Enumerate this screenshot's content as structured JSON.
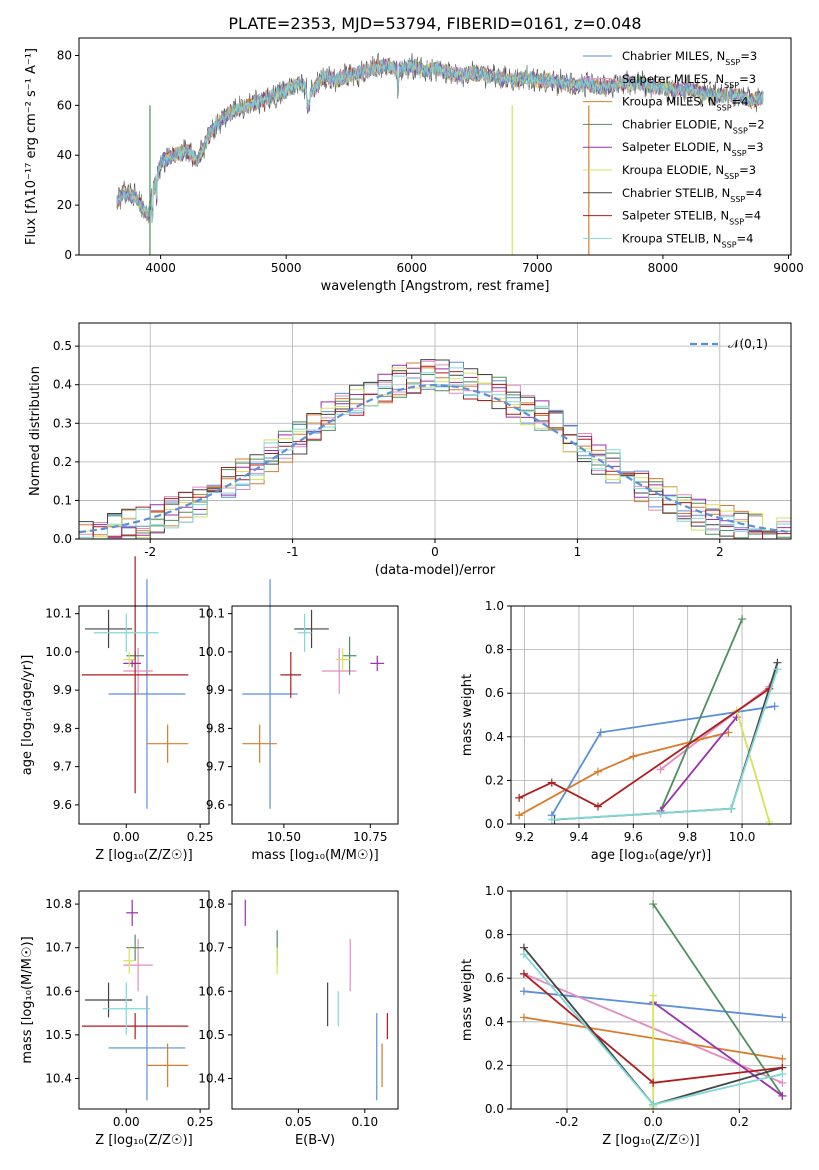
{
  "title": "PLATE=2353, MJD=53794, FIBERID=0161, z=0.048",
  "legend_labels": [
    "Chabrier MILES, N_SSP=3",
    "Salpeter MILES, N_SSP=3",
    "Kroupa MILES, N_SSP=4",
    "Chabrier ELODIE, N_SSP=2",
    "Salpeter ELODIE, N_SSP=3",
    "Kroupa ELODIE, N_SSP=3",
    "Chabrier STELIB, N_SSP=4",
    "Salpeter STELIB, N_SSP=4",
    "Kroupa STELIB, N_SSP=4"
  ],
  "colors": [
    "#5b8fd9",
    "#e38cc0",
    "#d97c2b",
    "#4f8f5f",
    "#9b2fae",
    "#d4e35a",
    "#444444",
    "#b01c1c",
    "#7fd8d8"
  ],
  "chart_data": [
    {
      "type": "line",
      "panel": "spectrum",
      "xlabel": "wavelength [Angstrom, rest frame]",
      "ylabel": "Flux [fλ10⁻¹⁷ erg cm⁻² s⁻¹ A⁻¹]",
      "xlim": [
        3350,
        9020
      ],
      "ylim": [
        0,
        87
      ],
      "xticks": [
        4000,
        5000,
        6000,
        7000,
        8000,
        9000
      ],
      "yticks": [
        0,
        20,
        40,
        60,
        80
      ],
      "legend": "top-right",
      "x": [
        3650,
        3700,
        3800,
        3900,
        3950,
        4000,
        4100,
        4200,
        4300,
        4400,
        4500,
        4600,
        4700,
        4800,
        4900,
        5000,
        5100,
        5200,
        5300,
        5400,
        5500,
        5600,
        5700,
        5800,
        5900,
        6000,
        6100,
        6200,
        6300,
        6400,
        6500,
        6600,
        6700,
        6800,
        6900,
        7000,
        7100,
        7200,
        7300,
        7400,
        7500,
        7600,
        7700,
        7800,
        7900,
        8000,
        8100,
        8200,
        8300,
        8400,
        8500,
        8600,
        8700,
        8800
      ],
      "flux": [
        21,
        25,
        23,
        16,
        28,
        37,
        40,
        42,
        38,
        50,
        55,
        58,
        60,
        62,
        64,
        66,
        69,
        65,
        72,
        70,
        72,
        73,
        75,
        76,
        74,
        76,
        74,
        75,
        73,
        72,
        73,
        72,
        71,
        70,
        71,
        70,
        70,
        69,
        68,
        69,
        67,
        68,
        69,
        69,
        68,
        67,
        66,
        67,
        65,
        64,
        64,
        64,
        62,
        63
      ]
    },
    {
      "type": "bar",
      "panel": "residual-histogram",
      "xlabel": "(data-model)/error",
      "ylabel": "Normed distribution",
      "xlim": [
        -2.5,
        2.5
      ],
      "ylim": [
        0,
        0.56
      ],
      "xticks": [
        -2,
        -1,
        0,
        1,
        2
      ],
      "yticks": [
        0.0,
        0.1,
        0.2,
        0.3,
        0.4,
        0.5
      ],
      "grid": true,
      "legend": "top-right",
      "reference_label": "𝒩(0,1)",
      "bin_width": 0.1
    },
    {
      "type": "scatter",
      "panel": "age-vs-Z",
      "xlabel": "Z [log₁₀(Z/Z☉)]",
      "ylabel": "age [log₁₀(age/yr)]",
      "xlim": [
        -0.16,
        0.28
      ],
      "ylim": [
        9.55,
        10.12
      ],
      "xticks": [
        -0.0,
        0.25
      ],
      "xtick_labels": [
        "0.00",
        "0.25"
      ],
      "yticks": [
        9.6,
        9.7,
        9.8,
        9.9,
        10.0,
        10.1
      ],
      "points": [
        {
          "x": 0.07,
          "xerr": 0.13,
          "y": 9.89,
          "yerr": 0.3
        },
        {
          "x": 0.04,
          "xerr": 0.05,
          "y": 9.95,
          "yerr": 0.06
        },
        {
          "x": 0.14,
          "xerr": 0.07,
          "y": 9.76,
          "yerr": 0.05
        },
        {
          "x": 0.03,
          "xerr": 0.03,
          "y": 9.99,
          "yerr": 0.01
        },
        {
          "x": 0.02,
          "xerr": 0.03,
          "y": 9.97,
          "yerr": 0.01
        },
        {
          "x": 0.01,
          "xerr": 0.02,
          "y": 9.98,
          "yerr": 0.02
        },
        {
          "x": -0.06,
          "xerr": 0.08,
          "y": 10.06,
          "yerr": 0.05
        },
        {
          "x": 0.03,
          "xerr": 0.18,
          "y": 9.94,
          "yerr": 0.31
        },
        {
          "x": 0.0,
          "xerr": 0.11,
          "y": 10.05,
          "yerr": 0.05
        }
      ]
    },
    {
      "type": "scatter",
      "panel": "age-vs-mass",
      "xlabel": "mass [log₁₀(M/M☉)]",
      "xlim": [
        10.35,
        10.83
      ],
      "ylim": [
        9.55,
        10.12
      ],
      "xticks": [
        10.5,
        10.75
      ],
      "xtick_labels": [
        "10.50",
        "10.75"
      ],
      "yticks": [
        9.6,
        9.7,
        9.8,
        9.9,
        10.0,
        10.1
      ],
      "points": [
        {
          "x": 10.46,
          "xerr": 0.08,
          "y": 9.89,
          "yerr": 0.3
        },
        {
          "x": 10.66,
          "xerr": 0.05,
          "y": 9.95,
          "yerr": 0.06
        },
        {
          "x": 10.43,
          "xerr": 0.05,
          "y": 9.76,
          "yerr": 0.05
        },
        {
          "x": 10.69,
          "xerr": 0.02,
          "y": 9.99,
          "yerr": 0.05
        },
        {
          "x": 10.77,
          "xerr": 0.02,
          "y": 9.97,
          "yerr": 0.02
        },
        {
          "x": 10.67,
          "xerr": 0.02,
          "y": 9.98,
          "yerr": 0.03
        },
        {
          "x": 10.58,
          "xerr": 0.05,
          "y": 10.06,
          "yerr": 0.05
        },
        {
          "x": 10.52,
          "xerr": 0.03,
          "y": 9.94,
          "yerr": 0.06
        },
        {
          "x": 10.56,
          "xerr": 0.02,
          "y": 10.05,
          "yerr": 0.05
        }
      ]
    },
    {
      "type": "line",
      "panel": "mass-weight-vs-age",
      "xlabel": "age [log₁₀(age/yr)]",
      "ylabel": "mass weight",
      "xlim": [
        9.15,
        10.18
      ],
      "ylim": [
        0,
        1
      ],
      "xticks": [
        9.2,
        9.4,
        9.6,
        9.8,
        10.0
      ],
      "yticks": [
        0.0,
        0.2,
        0.4,
        0.6,
        0.8,
        1.0
      ],
      "grid": true,
      "series": [
        {
          "x": [
            9.3,
            9.48,
            10.12
          ],
          "y": [
            0.04,
            0.42,
            0.54
          ]
        },
        {
          "x": [
            9.7,
            10.1
          ],
          "y": [
            0.25,
            0.63
          ]
        },
        {
          "x": [
            9.18,
            9.47,
            9.6,
            9.95
          ],
          "y": [
            0.04,
            0.24,
            0.31,
            0.42
          ]
        },
        {
          "x": [
            9.7,
            10.0
          ],
          "y": [
            0.06,
            0.94
          ]
        },
        {
          "x": [
            9.7,
            9.98
          ],
          "y": [
            0.06,
            0.49
          ]
        },
        {
          "x": [
            9.98,
            10.1
          ],
          "y": [
            0.52,
            0.01
          ]
        },
        {
          "x": [
            9.31,
            9.7,
            9.96,
            10.13
          ],
          "y": [
            0.02,
            0.05,
            0.07,
            0.74
          ]
        },
        {
          "x": [
            9.18,
            9.3,
            9.47,
            10.1
          ],
          "y": [
            0.12,
            0.19,
            0.08,
            0.62
          ]
        },
        {
          "x": [
            9.3,
            9.7,
            9.96,
            10.13
          ],
          "y": [
            0.02,
            0.05,
            0.07,
            0.71
          ]
        }
      ]
    },
    {
      "type": "scatter",
      "panel": "mass-vs-Z",
      "xlabel": "Z [log₁₀(Z/Z☉)]",
      "ylabel": "mass [log₁₀(M/M☉)]",
      "xlim": [
        -0.16,
        0.28
      ],
      "ylim": [
        10.33,
        10.83
      ],
      "xticks": [
        -0.0,
        0.25
      ],
      "xtick_labels": [
        "0.00",
        "0.25"
      ],
      "yticks": [
        10.4,
        10.5,
        10.6,
        10.7,
        10.8
      ],
      "points": [
        {
          "x": 0.07,
          "xerr": 0.13,
          "y": 10.47,
          "yerr": 0.12
        },
        {
          "x": 0.04,
          "xerr": 0.05,
          "y": 10.66,
          "yerr": 0.06
        },
        {
          "x": 0.14,
          "xerr": 0.07,
          "y": 10.43,
          "yerr": 0.05
        },
        {
          "x": 0.03,
          "xerr": 0.03,
          "y": 10.7,
          "yerr": 0.03
        },
        {
          "x": 0.02,
          "xerr": 0.02,
          "y": 10.78,
          "yerr": 0.03
        },
        {
          "x": 0.01,
          "xerr": 0.02,
          "y": 10.67,
          "yerr": 0.03
        },
        {
          "x": -0.06,
          "xerr": 0.08,
          "y": 10.58,
          "yerr": 0.04
        },
        {
          "x": 0.03,
          "xerr": 0.18,
          "y": 10.52,
          "yerr": 0.03
        },
        {
          "x": 0.0,
          "xerr": 0.08,
          "y": 10.56,
          "yerr": 0.06
        }
      ]
    },
    {
      "type": "scatter",
      "panel": "mass-vs-EBV",
      "xlabel": "E(B-V)",
      "xlim": [
        0.0,
        0.125
      ],
      "ylim": [
        10.33,
        10.83
      ],
      "xticks": [
        0.05,
        0.1
      ],
      "xtick_labels": [
        "0.05",
        "0.10"
      ],
      "yticks": [
        10.4,
        10.5,
        10.6,
        10.7,
        10.8
      ],
      "points": [
        {
          "x": 0.109,
          "y": 10.45,
          "yerr": 0.1
        },
        {
          "x": 0.089,
          "y": 10.66,
          "yerr": 0.06
        },
        {
          "x": 0.113,
          "y": 10.43,
          "yerr": 0.05
        },
        {
          "x": 0.034,
          "y": 10.7,
          "yerr": 0.04
        },
        {
          "x": 0.01,
          "y": 10.78,
          "yerr": 0.03
        },
        {
          "x": 0.034,
          "y": 10.67,
          "yerr": 0.03
        },
        {
          "x": 0.072,
          "y": 10.57,
          "yerr": 0.05
        },
        {
          "x": 0.117,
          "y": 10.52,
          "yerr": 0.03
        },
        {
          "x": 0.08,
          "y": 10.56,
          "yerr": 0.04
        }
      ]
    },
    {
      "type": "line",
      "panel": "mass-weight-vs-Z",
      "xlabel": "Z [log₁₀(Z/Z☉)]",
      "ylabel": "mass weight",
      "xlim": [
        -0.33,
        0.32
      ],
      "ylim": [
        0,
        1
      ],
      "xticks": [
        -0.2,
        0.0,
        0.2
      ],
      "yticks": [
        0.0,
        0.2,
        0.4,
        0.6,
        0.8,
        1.0
      ],
      "grid": true,
      "series": [
        {
          "x": [
            -0.3,
            0.0,
            0.3
          ],
          "y": [
            0.54,
            0.48,
            0.42
          ]
        },
        {
          "x": [
            -0.3,
            0.3
          ],
          "y": [
            0.62,
            0.12
          ]
        },
        {
          "x": [
            -0.3,
            0.3
          ],
          "y": [
            0.42,
            0.23
          ]
        },
        {
          "x": [
            0.0,
            0.3
          ],
          "y": [
            0.94,
            0.06
          ]
        },
        {
          "x": [
            0.0,
            0.3
          ],
          "y": [
            0.49,
            0.06
          ]
        },
        {
          "x": [
            0.0,
            0.0
          ],
          "y": [
            0.52,
            0.01
          ]
        },
        {
          "x": [
            -0.3,
            0.0,
            0.3
          ],
          "y": [
            0.74,
            0.02,
            0.19
          ]
        },
        {
          "x": [
            -0.3,
            0.0,
            0.3
          ],
          "y": [
            0.62,
            0.12,
            0.19
          ]
        },
        {
          "x": [
            -0.3,
            0.0,
            0.3
          ],
          "y": [
            0.71,
            0.02,
            0.16
          ]
        }
      ]
    }
  ]
}
